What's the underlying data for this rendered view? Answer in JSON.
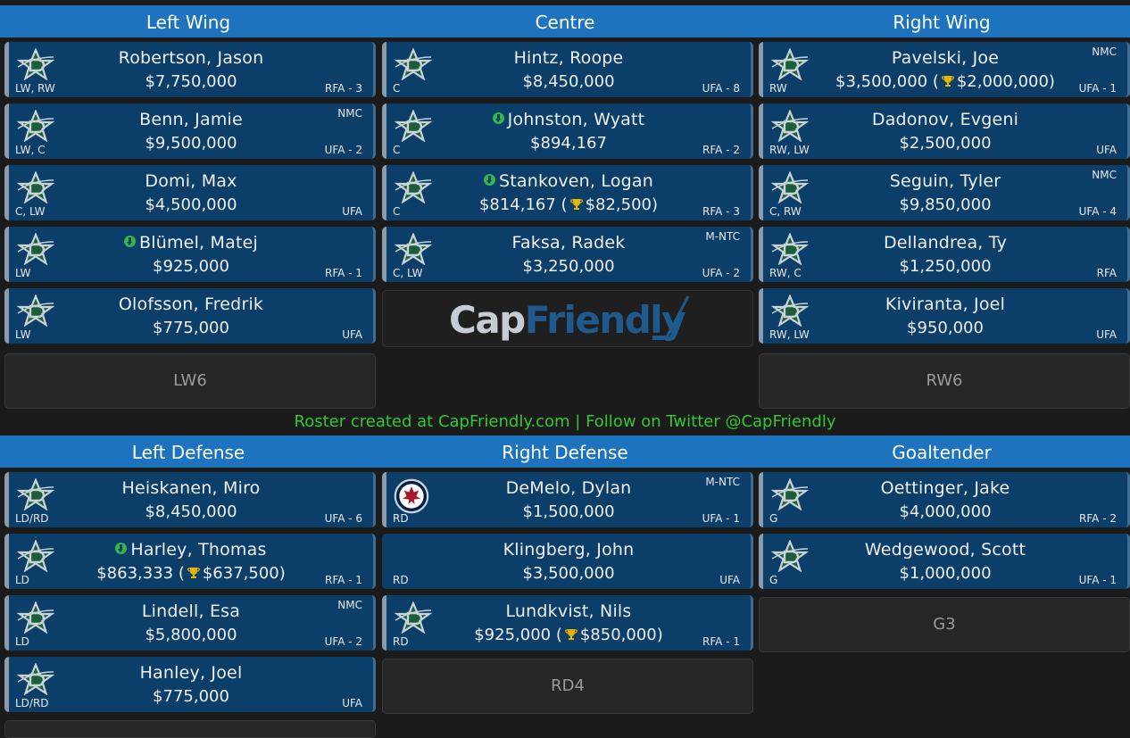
{
  "sections_top": [
    "Left Wing",
    "Centre",
    "Right Wing"
  ],
  "sections_bottom": [
    "Left Defense",
    "Right Defense",
    "Goaltender"
  ],
  "footer": "Roster created at CapFriendly.com | Follow on Twitter @CapFriendly",
  "brand": {
    "cap": "Cap",
    "friendly": "Friendly"
  },
  "forwards": {
    "lw": [
      {
        "name": "Robertson, Jason",
        "salary": "$7,750,000",
        "pos": "LW, RW",
        "contract": "RFA - 3",
        "clause": ""
      },
      {
        "name": "Benn, Jamie",
        "salary": "$9,500,000",
        "pos": "LW, C",
        "contract": "UFA - 2",
        "clause": "NMC"
      },
      {
        "name": "Domi, Max",
        "salary": "$4,500,000",
        "pos": "C, LW",
        "contract": "UFA",
        "clause": ""
      },
      {
        "name": "Blümel, Matej",
        "salary": "$925,000",
        "pos": "LW",
        "contract": "RFA - 1",
        "clause": "",
        "retained": true
      },
      {
        "name": "Olofsson, Fredrik",
        "salary": "$775,000",
        "pos": "LW",
        "contract": "UFA",
        "clause": ""
      }
    ],
    "c": [
      {
        "name": "Hintz, Roope",
        "salary": "$8,450,000",
        "pos": "C",
        "contract": "UFA - 8",
        "clause": ""
      },
      {
        "name": "Johnston, Wyatt",
        "salary": "$894,167",
        "pos": "C",
        "contract": "RFA - 2",
        "clause": "",
        "retained": true
      },
      {
        "name": "Stankoven, Logan",
        "salary": "$814,167",
        "bonus": "$82,500",
        "pos": "C",
        "contract": "RFA - 3",
        "clause": "",
        "retained": true
      },
      {
        "name": "Faksa, Radek",
        "salary": "$3,250,000",
        "pos": "C, LW",
        "contract": "UFA - 2",
        "clause": "M-NTC"
      }
    ],
    "rw": [
      {
        "name": "Pavelski, Joe",
        "salary": "$3,500,000",
        "bonus": "$2,000,000",
        "pos": "RW",
        "contract": "UFA - 1",
        "clause": "NMC"
      },
      {
        "name": "Dadonov, Evgeni",
        "salary": "$2,500,000",
        "pos": "RW, LW",
        "contract": "UFA",
        "clause": ""
      },
      {
        "name": "Seguin, Tyler",
        "salary": "$9,850,000",
        "pos": "C, RW",
        "contract": "UFA - 4",
        "clause": "NMC"
      },
      {
        "name": "Dellandrea, Ty",
        "salary": "$1,250,000",
        "pos": "RW, C",
        "contract": "RFA",
        "clause": ""
      },
      {
        "name": "Kiviranta, Joel",
        "salary": "$950,000",
        "pos": "RW, LW",
        "contract": "UFA",
        "clause": ""
      }
    ]
  },
  "empty_slots": {
    "lw6": "LW6",
    "rw6": "RW6",
    "g3": "G3",
    "rd4": "RD4"
  },
  "defense": {
    "ld": [
      {
        "name": "Heiskanen, Miro",
        "salary": "$8,450,000",
        "pos": "LD/RD",
        "contract": "UFA - 6",
        "clause": ""
      },
      {
        "name": "Harley, Thomas",
        "salary": "$863,333",
        "bonus": "$637,500",
        "pos": "LD",
        "contract": "RFA - 1",
        "clause": "",
        "retained": true
      },
      {
        "name": "Lindell, Esa",
        "salary": "$5,800,000",
        "pos": "LD",
        "contract": "UFA - 2",
        "clause": "NMC"
      },
      {
        "name": "Hanley, Joel",
        "salary": "$775,000",
        "pos": "LD/RD",
        "contract": "UFA",
        "clause": ""
      }
    ],
    "rd": [
      {
        "name": "DeMelo, Dylan",
        "salary": "$1,500,000",
        "pos": "RD",
        "contract": "UFA - 1",
        "clause": "M-NTC",
        "logo": "jets"
      },
      {
        "name": "Klingberg, John",
        "salary": "$3,500,000",
        "pos": "RD",
        "contract": "UFA",
        "clause": "",
        "logo": "none"
      },
      {
        "name": "Lundkvist, Nils",
        "salary": "$925,000",
        "bonus": "$850,000",
        "pos": "RD",
        "contract": "RFA - 1",
        "clause": ""
      }
    ],
    "g": [
      {
        "name": "Oettinger, Jake",
        "salary": "$4,000,000",
        "pos": "G",
        "contract": "RFA - 2",
        "clause": ""
      },
      {
        "name": "Wedgewood, Scott",
        "salary": "$1,000,000",
        "pos": "G",
        "contract": "UFA - 1",
        "clause": ""
      }
    ]
  }
}
